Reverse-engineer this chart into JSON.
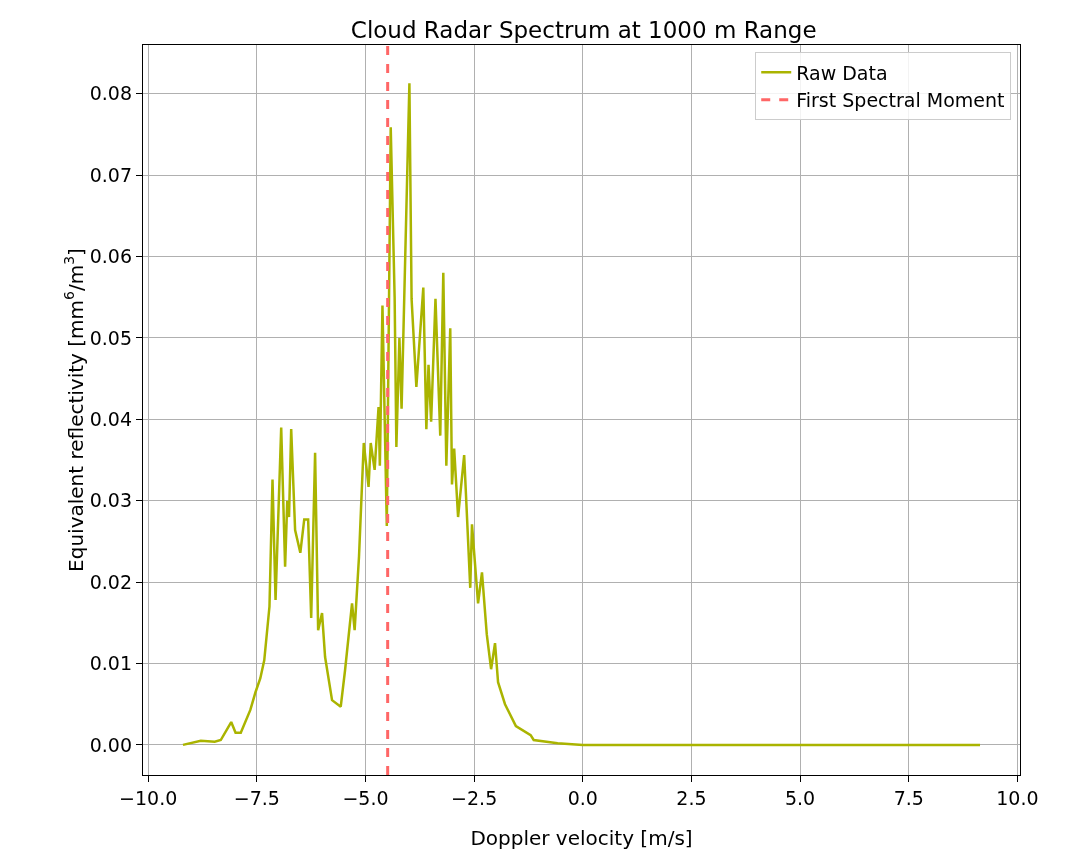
{
  "chart_data": {
    "type": "line",
    "title": "Cloud Radar Spectrum at 1000 m Range",
    "xlabel": "Doppler velocity [m/s]",
    "ylabel": "Equivalent reflectivity [mm$^{6}$/m$^{3}$]",
    "series": [
      {
        "name": "Raw Data",
        "color": "#aab400",
        "x": [
          -9.2,
          -8.79,
          -8.47,
          -8.33,
          -8.09,
          -7.99,
          -7.87,
          -7.65,
          -7.53,
          -7.42,
          -7.33,
          -7.21,
          -7.14,
          -7.07,
          -6.94,
          -6.85,
          -6.8,
          -6.76,
          -6.71,
          -6.62,
          -6.5,
          -6.41,
          -6.32,
          -6.25,
          -6.16,
          -6.09,
          -6.0,
          -5.93,
          -5.77,
          -5.57,
          -5.47,
          -5.31,
          -5.25,
          -5.15,
          -5.04,
          -4.93,
          -4.88,
          -4.79,
          -4.7,
          -4.67,
          -4.61,
          -4.51,
          -4.42,
          -4.33,
          -4.29,
          -4.22,
          -4.17,
          -3.99,
          -3.94,
          -3.83,
          -3.67,
          -3.6,
          -3.55,
          -3.49,
          -3.39,
          -3.28,
          -3.21,
          -3.14,
          -3.05,
          -3.01,
          -2.96,
          -2.87,
          -2.73,
          -2.59,
          -2.55,
          -2.41,
          -2.32,
          -2.21,
          -2.11,
          -2.02,
          -1.95,
          -1.79,
          -1.54,
          -1.2,
          -1.13,
          -0.58,
          0.0,
          9.14
        ],
        "values": [
          0,
          0.0005,
          0.0004,
          0.0006,
          0.0028,
          0.0015,
          0.0015,
          0.0043,
          0.0065,
          0.0082,
          0.0104,
          0.017,
          0.0326,
          0.0178,
          0.039,
          0.0219,
          0.03,
          0.028,
          0.0388,
          0.0264,
          0.0236,
          0.0277,
          0.0277,
          0.0156,
          0.0359,
          0.0141,
          0.0162,
          0.0108,
          0.0055,
          0.0047,
          0.0092,
          0.0174,
          0.0141,
          0.0231,
          0.0371,
          0.0317,
          0.0371,
          0.0338,
          0.0415,
          0.0343,
          0.054,
          0.0269,
          0.0759,
          0.055,
          0.0366,
          0.05,
          0.0413,
          0.0813,
          0.0548,
          0.044,
          0.0562,
          0.0388,
          0.0467,
          0.0397,
          0.0548,
          0.038,
          0.058,
          0.0343,
          0.0512,
          0.032,
          0.0364,
          0.028,
          0.0356,
          0.0193,
          0.0271,
          0.0174,
          0.0212,
          0.0136,
          0.0093,
          0.0125,
          0.0077,
          0.005,
          0.0023,
          0.0012,
          0.0006,
          0.0002,
          0,
          0
        ]
      },
      {
        "name": "First Spectral Moment",
        "color": "#ff6666",
        "line_style": "dashed",
        "x": [
          -4.49,
          -4.49
        ],
        "values": [
          -0.0037,
          0.086
        ]
      }
    ],
    "xlim": [
      -10.12,
      10.06
    ],
    "xticks": [
      {
        "value": -10,
        "label": "−10.0"
      },
      {
        "value": -7.5,
        "label": "−7.5"
      },
      {
        "value": -5,
        "label": "−5.0"
      },
      {
        "value": -2.5,
        "label": "−2.5"
      },
      {
        "value": 0,
        "label": "0.0"
      },
      {
        "value": 2.5,
        "label": "2.5"
      },
      {
        "value": 5,
        "label": "5.0"
      },
      {
        "value": 7.5,
        "label": "7.5"
      },
      {
        "value": 10,
        "label": "10.0"
      }
    ],
    "ylim": [
      -0.0037,
      0.086
    ],
    "yticks": [
      {
        "value": 0,
        "label": "0.00"
      },
      {
        "value": 0.01,
        "label": "0.01"
      },
      {
        "value": 0.02,
        "label": "0.02"
      },
      {
        "value": 0.03,
        "label": "0.03"
      },
      {
        "value": 0.04,
        "label": "0.04"
      },
      {
        "value": 0.05,
        "label": "0.05"
      },
      {
        "value": 0.06,
        "label": "0.06"
      },
      {
        "value": 0.07,
        "label": "0.07"
      },
      {
        "value": 0.08,
        "label": "0.08"
      }
    ],
    "grid": true,
    "legend": "top right",
    "line_style": "solid",
    "marker": "none"
  }
}
